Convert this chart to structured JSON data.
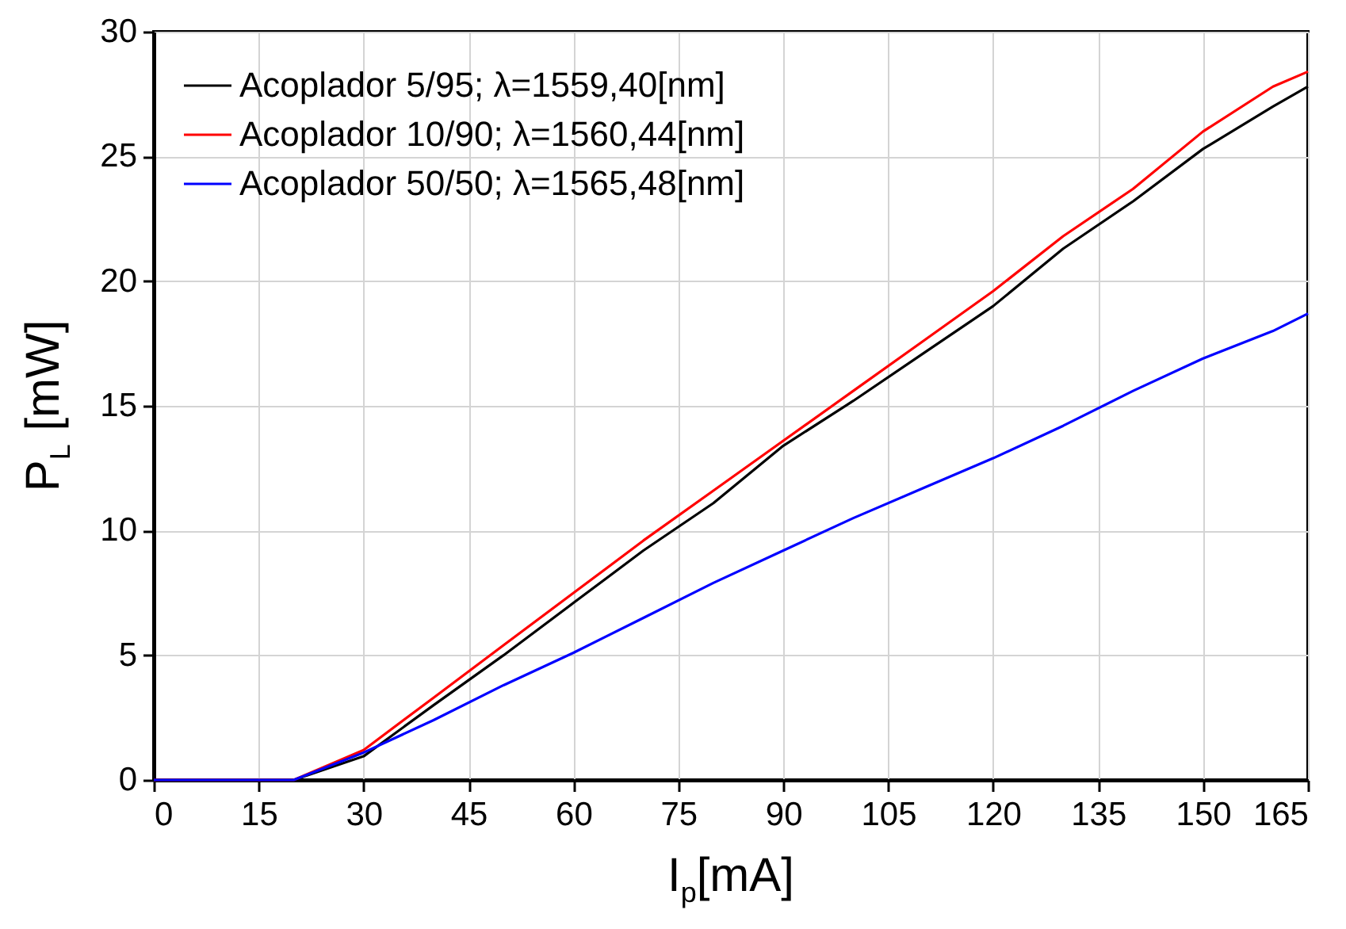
{
  "chart_data": {
    "type": "line",
    "xlabel": "I$_{p}$[mA]",
    "ylabel": "P$_{L}$ [mW]",
    "x": [
      0,
      10,
      20,
      30,
      40,
      50,
      60,
      70,
      80,
      90,
      100,
      110,
      120,
      130,
      140,
      150,
      160,
      165
    ],
    "series": [
      {
        "name": "Acoplador 5/95; λ=1559,40[nm]",
        "color": "#000000",
        "values": [
          0,
          0,
          0,
          0.95,
          3.0,
          5.0,
          7.1,
          9.2,
          11.1,
          13.4,
          15.2,
          17.1,
          19.0,
          21.3,
          23.2,
          25.3,
          27.0,
          27.8
        ]
      },
      {
        "name": "Acoplador 10/90; λ=1560,44[nm]",
        "color": "#ff0000",
        "values": [
          0,
          0,
          0,
          1.2,
          3.3,
          5.4,
          7.5,
          9.6,
          11.6,
          13.6,
          15.6,
          17.6,
          19.6,
          21.8,
          23.7,
          26.0,
          27.8,
          28.4
        ]
      },
      {
        "name": "Acoplador 50/50; λ=1565,48[nm]",
        "color": "#0000ff",
        "values": [
          0,
          0,
          0,
          1.1,
          2.4,
          3.8,
          5.1,
          6.5,
          7.9,
          9.2,
          10.5,
          11.7,
          12.9,
          14.2,
          15.6,
          16.9,
          18.0,
          18.7
        ]
      }
    ],
    "xlim": [
      0,
      165
    ],
    "xticks": [
      0,
      15,
      30,
      45,
      60,
      75,
      90,
      105,
      120,
      135,
      150,
      165
    ],
    "ylim": [
      0,
      30
    ],
    "yticks": [
      0,
      5,
      10,
      15,
      20,
      25,
      30
    ],
    "grid": true,
    "legend": "top left",
    "line_style": "solid"
  }
}
